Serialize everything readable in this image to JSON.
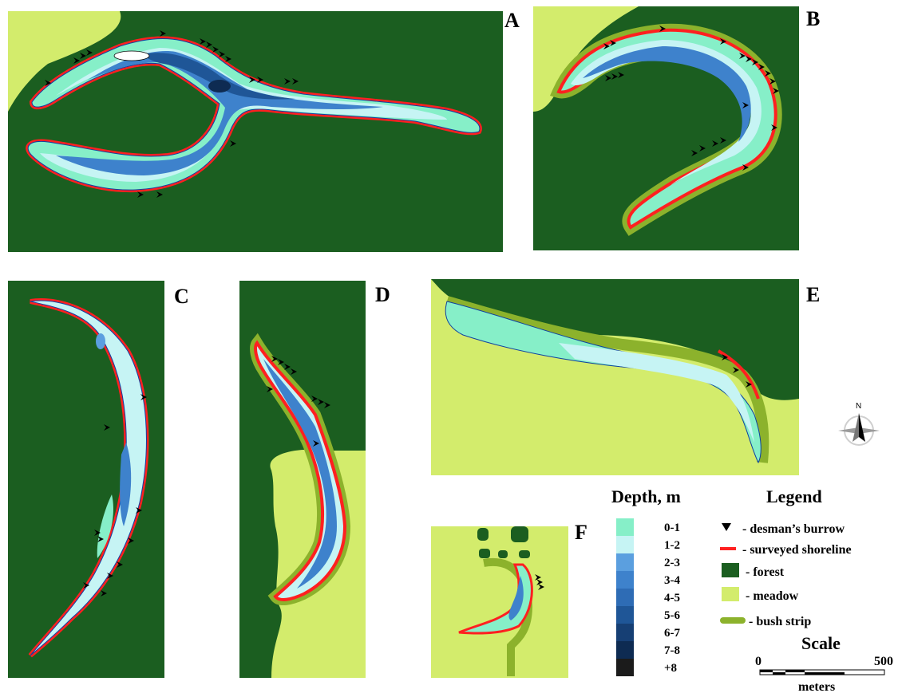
{
  "panels": [
    {
      "id": "A",
      "label": "A"
    },
    {
      "id": "B",
      "label": "B"
    },
    {
      "id": "C",
      "label": "C"
    },
    {
      "id": "D",
      "label": "D"
    },
    {
      "id": "E",
      "label": "E"
    },
    {
      "id": "F",
      "label": "F"
    }
  ],
  "depth_legend": {
    "title": "Depth, m",
    "classes": [
      {
        "label": "0-1",
        "color": "#86efc8"
      },
      {
        "label": "1-2",
        "color": "#c6f4f4"
      },
      {
        "label": "2-3",
        "color": "#5b9fdf"
      },
      {
        "label": "3-4",
        "color": "#3e82cc"
      },
      {
        "label": "4-5",
        "color": "#2e6cb5"
      },
      {
        "label": "5-6",
        "color": "#1f5697"
      },
      {
        "label": "6-7",
        "color": "#163f74"
      },
      {
        "label": "7-8",
        "color": "#0e2b52"
      },
      {
        "label": "+8",
        "color": "#1b1b1b"
      }
    ]
  },
  "legend": {
    "title": "Legend",
    "items": [
      {
        "key": "burrow",
        "label": "- desman’s burrow"
      },
      {
        "key": "shoreline",
        "label": "- surveyed shoreline",
        "color": "#ff2020"
      },
      {
        "key": "forest",
        "label": "- forest",
        "color": "#1b5e20"
      },
      {
        "key": "meadow",
        "label": "-  meadow",
        "color": "#d3ec6c"
      },
      {
        "key": "bush",
        "label": "- bush strip",
        "color": "#8cb22c"
      }
    ]
  },
  "scale": {
    "title": "Scale",
    "min_label": "0",
    "max_label": "500",
    "unit": "meters"
  },
  "compass": {
    "north_label": "N"
  }
}
